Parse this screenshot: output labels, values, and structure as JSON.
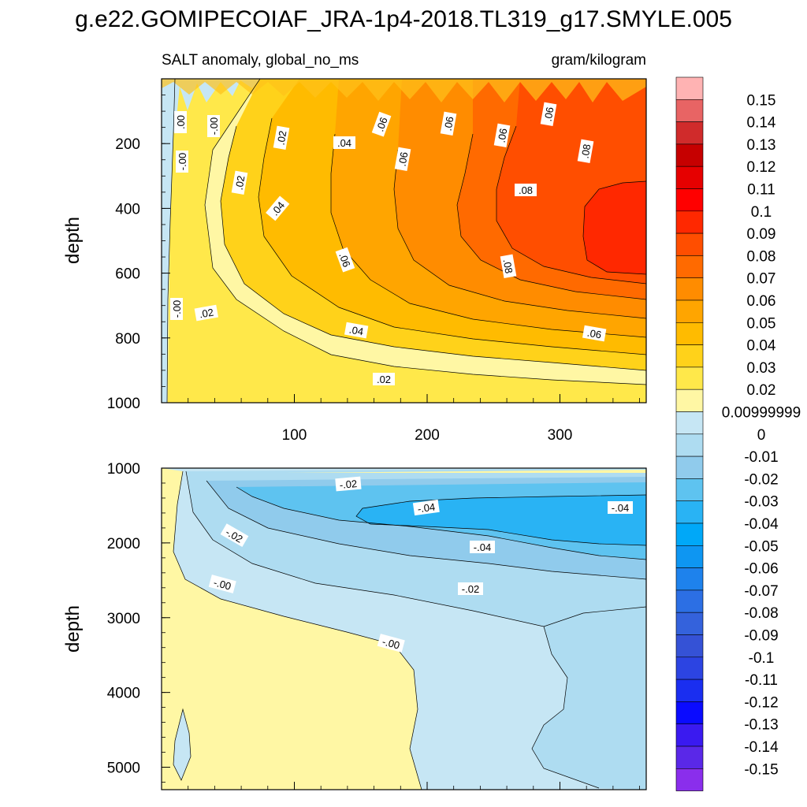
{
  "figure_title": "g.e22.GOMIPECOIAF_JRA-1p4-2018.TL319_g17.SMYLE.005",
  "chart_data": [
    {
      "type": "heatmap",
      "panel": "upper",
      "title": "SALT anomaly, global_no_ms",
      "units": "gram/kilogram",
      "xlabel": "",
      "ylabel": "depth",
      "xlim": [
        0,
        365
      ],
      "ylim": [
        1000,
        0
      ],
      "x_ticks": [
        100,
        200,
        300
      ],
      "y_ticks": [
        200,
        400,
        600,
        800,
        1000
      ],
      "contour_interval": 0.01,
      "contour_labels": [
        ".00",
        "-.00",
        ".02",
        ".04",
        ".06",
        ".08",
        "-.00",
        ".02",
        ".02",
        ".04",
        ".06",
        ".04",
        ".06",
        ".08",
        ".06",
        ".08",
        ".06",
        ".04",
        ".02",
        ".06",
        ".08"
      ],
      "regions": [
        {
          "level": "0.08 to 0.09",
          "description": "core near 300-365 days, 350-650 m"
        },
        {
          "level": "-0.01 to 0",
          "description": "thin strip near day 0-20 and upper 100 m"
        }
      ]
    },
    {
      "type": "heatmap",
      "panel": "lower",
      "title": "",
      "xlabel": "",
      "ylabel": "depth",
      "xlim": [
        0,
        365
      ],
      "ylim": [
        5300,
        1000
      ],
      "y_ticks": [
        1000,
        2000,
        3000,
        4000,
        5000
      ],
      "contour_interval": 0.01,
      "contour_labels": [
        "-.02",
        "-.04",
        "-.04",
        "-.02",
        "-.04",
        "-.00",
        "-.02",
        "-.00"
      ],
      "regions": [
        {
          "level": "-0.05 to -0.04",
          "description": "core near 150-365 days, 1500-2200 m"
        },
        {
          "level": "0 to 0.01",
          "description": "left wedge below 2700 m"
        }
      ]
    }
  ],
  "colorbar": {
    "colors": [
      "#FFB3B3",
      "#E86464",
      "#D02B2B",
      "#C60000",
      "#E60000",
      "#FF0000",
      "#FF2800",
      "#FF4E00",
      "#FF6A00",
      "#FF8C00",
      "#FFA500",
      "#FFBB00",
      "#FFD21A",
      "#FFE84A",
      "#FFF7A4",
      "#C6E6F4",
      "#AEDCF1",
      "#90CBEC",
      "#5EC3F0",
      "#29B3F4",
      "#00A8F8",
      "#0E96F2",
      "#1E82EC",
      "#2C6FE4",
      "#3462DC",
      "#3552D6",
      "#2C44E2",
      "#1A2EF0",
      "#0A0BFF",
      "#3A1AF0",
      "#5A28E8",
      "#8A2EEC"
    ],
    "labels": [
      "0.15",
      "0.14",
      "0.13",
      "0.12",
      "0.11",
      "0.1",
      "0.09",
      "0.08",
      "0.07",
      "0.06",
      "0.05",
      "0.04",
      "0.03",
      "0.02",
      "0.00999999",
      "0",
      "-0.01",
      "-0.02",
      "-0.03",
      "-0.04",
      "-0.05",
      "-0.06",
      "-0.07",
      "-0.08",
      "-0.09",
      "-0.1",
      "-0.11",
      "-0.12",
      "-0.13",
      "-0.14",
      "-0.15"
    ]
  }
}
